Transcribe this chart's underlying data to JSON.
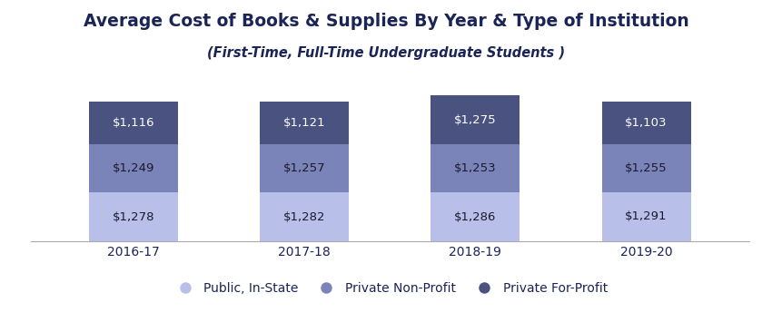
{
  "title": "Average Cost of Books & Supplies By Year & Type of Institution",
  "subtitle": "(First-Time, Full-Time Undergraduate Students )",
  "years": [
    "2016-17",
    "2017-18",
    "2018-19",
    "2019-20"
  ],
  "public_instate": [
    1278,
    1282,
    1286,
    1291
  ],
  "private_nonprofit": [
    1249,
    1257,
    1253,
    1255
  ],
  "private_forprofit": [
    1116,
    1121,
    1275,
    1103
  ],
  "color_public": "#b8bfe8",
  "color_nonprofit": "#7b84b8",
  "color_forprofit": "#4a5280",
  "legend_labels": [
    "Public, In-State",
    "Private Non-Profit",
    "Private For-Profit"
  ],
  "title_fontsize": 13.5,
  "subtitle_fontsize": 10.5,
  "label_fontsize": 9.5,
  "tick_fontsize": 10,
  "legend_fontsize": 10,
  "background_color": "#ffffff",
  "title_color": "#1a2456",
  "text_color_dark": "#1a1a2e",
  "bar_width": 0.52,
  "ylim": 4200
}
